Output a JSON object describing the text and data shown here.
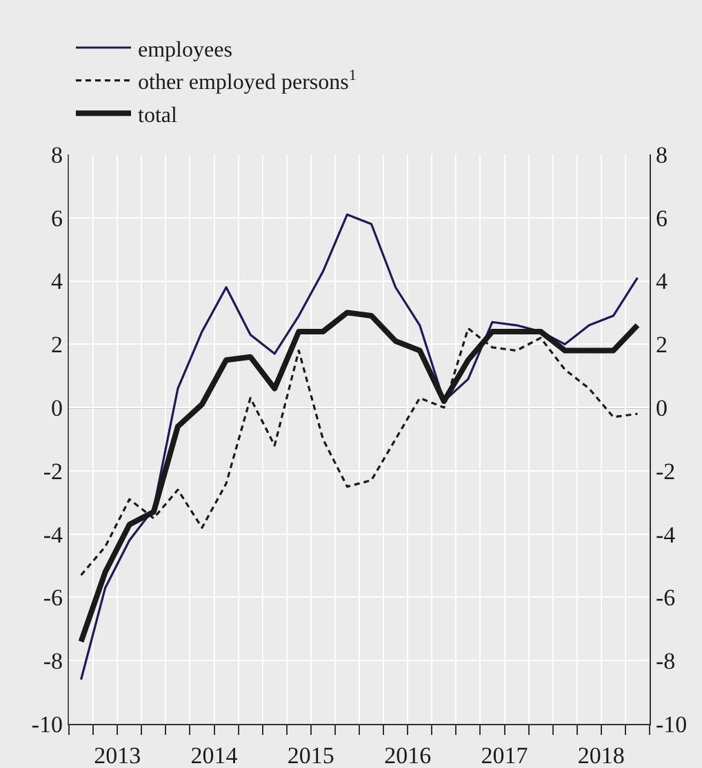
{
  "chart_data": {
    "type": "line",
    "x": [
      2013.125,
      2013.375,
      2013.625,
      2013.875,
      2014.125,
      2014.375,
      2014.625,
      2014.875,
      2015.125,
      2015.375,
      2015.625,
      2015.875,
      2016.125,
      2016.375,
      2016.625,
      2016.875,
      2017.125,
      2017.375,
      2017.625,
      2017.875,
      2018.125,
      2018.375,
      2018.625,
      2018.875
    ],
    "series": [
      {
        "name": "employees",
        "color": "#1b1a5c",
        "line_style": "solid",
        "values": [
          -8.6,
          -5.7,
          -4.2,
          -3.2,
          0.6,
          2.4,
          3.8,
          2.3,
          1.7,
          2.9,
          4.3,
          6.1,
          5.8,
          3.8,
          2.6,
          0.2,
          0.9,
          2.7,
          2.6,
          2.4,
          2.0,
          2.6,
          2.9,
          4.1
        ]
      },
      {
        "name": "other employed persons$^{1}$",
        "color": "#1a1a1a",
        "line_style": "dashed",
        "values": [
          -5.3,
          -4.4,
          -2.9,
          -3.5,
          -2.6,
          -3.8,
          -2.4,
          0.3,
          -1.2,
          1.8,
          -1.0,
          -2.5,
          -2.3,
          -1.0,
          0.3,
          0.0,
          2.5,
          1.9,
          1.8,
          2.2,
          1.2,
          0.6,
          -0.3,
          -0.2
        ]
      },
      {
        "name": "total",
        "color": "#1a1a1a",
        "line_style": "solid",
        "values": [
          -7.4,
          -5.2,
          -3.7,
          -3.3,
          -0.6,
          0.1,
          1.5,
          1.6,
          0.6,
          2.4,
          2.4,
          3.0,
          2.9,
          2.1,
          1.8,
          0.2,
          1.5,
          2.4,
          2.4,
          2.4,
          1.8,
          1.8,
          1.8,
          2.6
        ]
      }
    ],
    "xlim": [
      2013,
      2019
    ],
    "xticks": [
      {
        "value": 2013,
        "label": null
      },
      {
        "value": 2013.25,
        "label": null
      },
      {
        "value": 2013.5,
        "label": "2013"
      },
      {
        "value": 2013.75,
        "label": null
      },
      {
        "value": 2014,
        "label": null
      },
      {
        "value": 2014.25,
        "label": null
      },
      {
        "value": 2014.5,
        "label": "2014"
      },
      {
        "value": 2014.75,
        "label": null
      },
      {
        "value": 2015,
        "label": null
      },
      {
        "value": 2015.25,
        "label": null
      },
      {
        "value": 2015.5,
        "label": "2015"
      },
      {
        "value": 2015.75,
        "label": null
      },
      {
        "value": 2016,
        "label": null
      },
      {
        "value": 2016.25,
        "label": null
      },
      {
        "value": 2016.5,
        "label": "2016"
      },
      {
        "value": 2016.75,
        "label": null
      },
      {
        "value": 2017,
        "label": null
      },
      {
        "value": 2017.25,
        "label": null
      },
      {
        "value": 2017.5,
        "label": "2017"
      },
      {
        "value": 2017.75,
        "label": null
      },
      {
        "value": 2018,
        "label": null
      },
      {
        "value": 2018.25,
        "label": null
      },
      {
        "value": 2018.5,
        "label": "2018"
      },
      {
        "value": 2018.75,
        "label": null
      },
      {
        "value": 2019,
        "label": null
      }
    ],
    "ylim": [
      -10,
      8
    ],
    "yticks": [
      -10,
      -8,
      -6,
      -4,
      -2,
      0,
      2,
      4,
      6,
      8
    ],
    "y2lim": [
      -10,
      8
    ],
    "y2ticks": [
      -10,
      -8,
      -6,
      -4,
      -2,
      0,
      2,
      4,
      6,
      8
    ],
    "ref_lines": [
      {
        "axis": "y",
        "value": 0,
        "color": "#666666"
      }
    ],
    "grid": true,
    "legend": "top left",
    "marker": "none"
  }
}
